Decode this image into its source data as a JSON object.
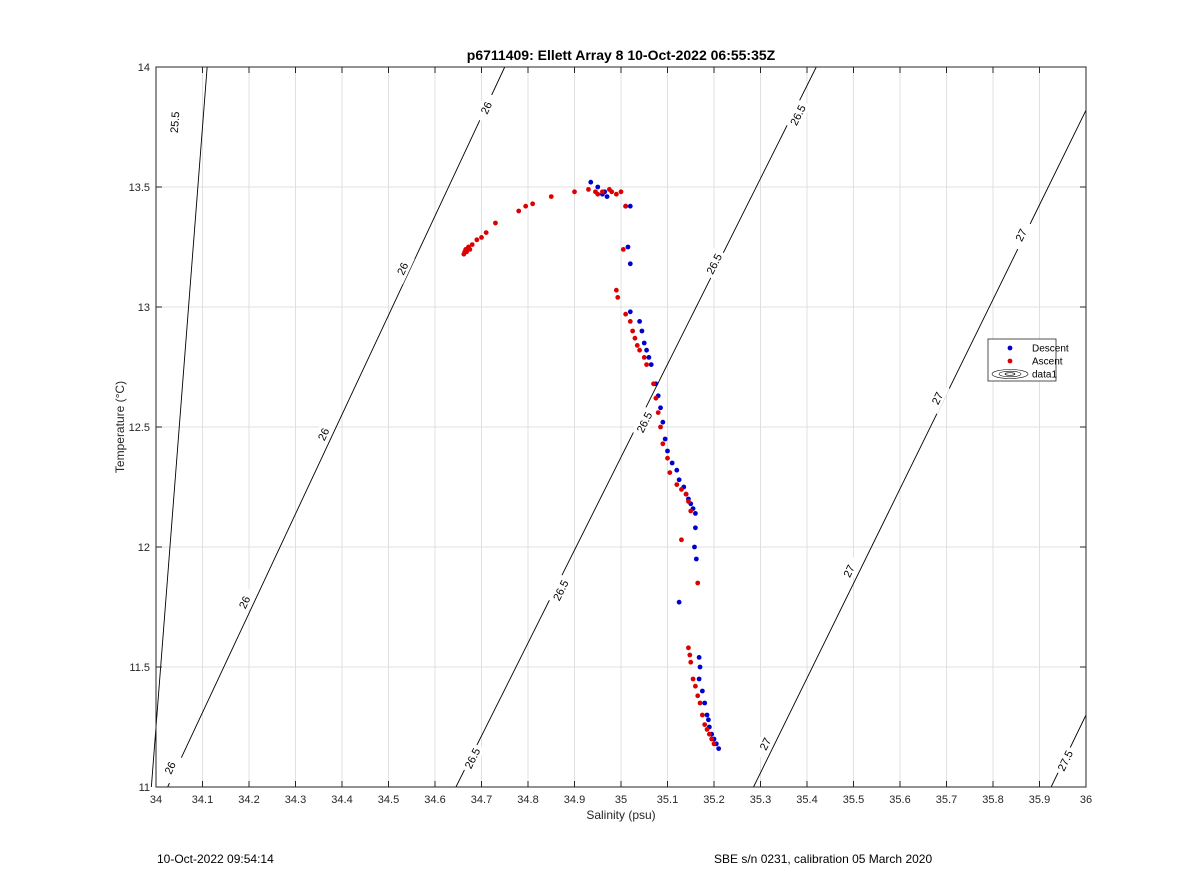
{
  "footer": {
    "timestamp": "10-Oct-2022 09:54:14",
    "instrument": "SBE s/n 0231, calibration 05 March 2020"
  },
  "chart_data": {
    "type": "scatter",
    "title": "p6711409: Ellett Array 8 10-Oct-2022 06:55:35Z",
    "xlabel": "Salinity (psu)",
    "ylabel": "Temperature (°C)",
    "xlim": [
      34,
      36
    ],
    "ylim": [
      11,
      14
    ],
    "xticks": [
      34,
      34.1,
      34.2,
      34.3,
      34.4,
      34.5,
      34.6,
      34.7,
      34.8,
      34.9,
      35,
      35.1,
      35.2,
      35.3,
      35.4,
      35.5,
      35.6,
      35.7,
      35.8,
      35.9,
      36
    ],
    "yticks": [
      11,
      11.5,
      12,
      12.5,
      13,
      13.5,
      14
    ],
    "grid": true,
    "legend": {
      "position": "right",
      "entries": [
        "Descent",
        "Ascent",
        "data1"
      ]
    },
    "colors": {
      "descent": "#0000cc",
      "ascent": "#dd0000",
      "contour": "#000000"
    },
    "series": [
      {
        "name": "Descent",
        "x": [
          34.935,
          34.95,
          34.96,
          34.965,
          34.97,
          35.01,
          35.02,
          35.015,
          35.02,
          35.02,
          35.04,
          35.045,
          35.05,
          35.055,
          35.06,
          35.065,
          35.075,
          35.08,
          35.085,
          35.09,
          35.095,
          35.1,
          35.11,
          35.12,
          35.125,
          35.135,
          35.14,
          35.145,
          35.15,
          35.155,
          35.16,
          35.16,
          35.158,
          35.162,
          35.125,
          35.168,
          35.17,
          35.168,
          35.175,
          35.18,
          35.185,
          35.188,
          35.19,
          35.195,
          35.2,
          35.205,
          35.21
        ],
        "y": [
          13.52,
          13.5,
          13.47,
          13.48,
          13.46,
          13.42,
          13.42,
          13.25,
          13.18,
          12.98,
          12.94,
          12.9,
          12.85,
          12.82,
          12.79,
          12.76,
          12.68,
          12.63,
          12.58,
          12.52,
          12.45,
          12.4,
          12.35,
          12.32,
          12.28,
          12.25,
          12.22,
          12.2,
          12.18,
          12.16,
          12.14,
          12.08,
          12.0,
          11.95,
          11.77,
          11.54,
          11.5,
          11.45,
          11.4,
          11.35,
          11.3,
          11.28,
          11.25,
          11.22,
          11.2,
          11.18,
          11.16
        ]
      },
      {
        "name": "Ascent",
        "x": [
          34.662,
          34.664,
          34.666,
          34.668,
          34.672,
          34.675,
          34.68,
          34.69,
          34.7,
          34.71,
          34.73,
          34.78,
          34.795,
          34.81,
          34.85,
          34.9,
          34.93,
          34.945,
          34.95,
          34.96,
          34.975,
          34.98,
          34.99,
          35.0,
          35.01,
          35.005,
          34.99,
          34.993,
          35.01,
          35.02,
          35.025,
          35.03,
          35.035,
          35.04,
          35.05,
          35.055,
          35.07,
          35.075,
          35.08,
          35.085,
          35.09,
          35.1,
          35.105,
          35.12,
          35.13,
          35.14,
          35.145,
          35.15,
          35.13,
          35.165,
          35.145,
          35.148,
          35.15,
          35.155,
          35.16,
          35.165,
          35.17,
          35.175,
          35.18,
          35.185,
          35.19,
          35.195,
          35.2
        ],
        "y": [
          13.22,
          13.23,
          13.24,
          13.23,
          13.25,
          13.24,
          13.26,
          13.28,
          13.29,
          13.31,
          13.35,
          13.4,
          13.42,
          13.43,
          13.46,
          13.48,
          13.49,
          13.48,
          13.47,
          13.48,
          13.49,
          13.48,
          13.47,
          13.48,
          13.42,
          13.24,
          13.07,
          13.04,
          12.97,
          12.94,
          12.9,
          12.87,
          12.84,
          12.82,
          12.79,
          12.76,
          12.68,
          12.62,
          12.56,
          12.5,
          12.43,
          12.37,
          12.31,
          12.26,
          12.24,
          12.22,
          12.19,
          12.15,
          12.03,
          11.85,
          11.58,
          11.55,
          11.52,
          11.45,
          11.42,
          11.38,
          11.35,
          11.3,
          11.26,
          11.24,
          11.22,
          11.2,
          11.18
        ]
      }
    ],
    "contours": [
      {
        "value": "25.5",
        "x": [
          33.99,
          34.11
        ],
        "y": [
          11,
          14
        ],
        "labels": [
          {
            "text": "25.5",
            "x": 34.04,
            "y": 13.77
          }
        ]
      },
      {
        "value": "26",
        "x": [
          34.025,
          34.75
        ],
        "y": [
          11,
          14
        ],
        "labels": [
          {
            "text": "26",
            "x": 34.03,
            "y": 11.08
          },
          {
            "text": "26",
            "x": 34.19,
            "y": 11.77
          },
          {
            "text": "26",
            "x": 34.36,
            "y": 12.47
          },
          {
            "text": "26",
            "x": 34.53,
            "y": 13.16
          },
          {
            "text": "26",
            "x": 34.71,
            "y": 13.83
          }
        ]
      },
      {
        "value": "26.5",
        "x": [
          34.645,
          35.42
        ],
        "y": [
          11,
          14
        ],
        "labels": [
          {
            "text": "26.5",
            "x": 34.68,
            "y": 11.12
          },
          {
            "text": "26.5",
            "x": 34.87,
            "y": 11.82
          },
          {
            "text": "26.5",
            "x": 35.05,
            "y": 12.52
          },
          {
            "text": "26.5",
            "x": 35.2,
            "y": 13.18
          },
          {
            "text": "26.5",
            "x": 35.38,
            "y": 13.8
          }
        ]
      },
      {
        "value": "27",
        "x": [
          35.285,
          36.0
        ],
        "y": [
          11,
          13.82
        ],
        "labels": [
          {
            "text": "27",
            "x": 35.31,
            "y": 11.18
          },
          {
            "text": "27",
            "x": 35.49,
            "y": 11.9
          },
          {
            "text": "27",
            "x": 35.68,
            "y": 12.62
          },
          {
            "text": "27",
            "x": 35.86,
            "y": 13.3
          }
        ]
      },
      {
        "value": "27.5",
        "x": [
          35.925,
          36.0
        ],
        "y": [
          11,
          11.3
        ],
        "labels": [
          {
            "text": "27.5",
            "x": 35.955,
            "y": 11.11
          }
        ]
      }
    ]
  }
}
